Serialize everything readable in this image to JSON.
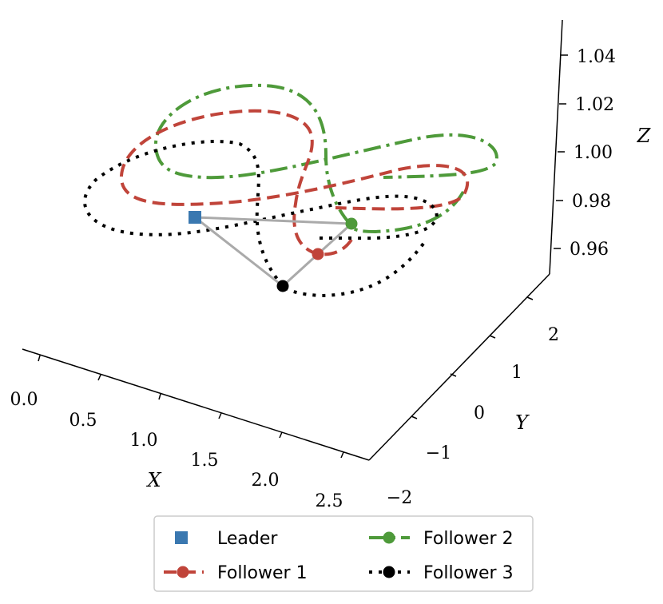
{
  "chart_data": {
    "type": "line3d",
    "axes": {
      "x": {
        "label": "X",
        "ticks": [
          "0.0",
          "0.5",
          "1.0",
          "1.5",
          "2.0",
          "2.5"
        ],
        "range": [
          0.0,
          2.5
        ]
      },
      "y": {
        "label": "Y",
        "ticks": [
          "−2",
          "−1",
          "0",
          "1",
          "2"
        ],
        "range": [
          -2,
          2
        ]
      },
      "z": {
        "label": "Z",
        "ticks": [
          "0.96",
          "0.98",
          "1.00",
          "1.02",
          "1.04"
        ],
        "range": [
          0.95,
          1.05
        ]
      }
    },
    "grid": false,
    "legend": {
      "placement": "bottom-center",
      "columns": 2,
      "entries": [
        {
          "key": "leader",
          "label": "Leader",
          "marker": "square",
          "line": "none",
          "color": "#3a78b0"
        },
        {
          "key": "f1",
          "label": "Follower 1",
          "marker": "circle",
          "line": "dashed",
          "color": "#c0443a"
        },
        {
          "key": "f2",
          "label": "Follower 2",
          "marker": "circle",
          "line": "dashdot",
          "color": "#4e9a3a"
        },
        {
          "key": "f3",
          "label": "Follower 3",
          "marker": "circle",
          "line": "dotted",
          "color": "#000000"
        }
      ]
    },
    "series": [
      {
        "name": "Follower 1",
        "trajectory": "figure-eight",
        "line": "dashed",
        "color": "#c0443a"
      },
      {
        "name": "Follower 2",
        "trajectory": "figure-eight",
        "line": "dashdot",
        "color": "#4e9a3a"
      },
      {
        "name": "Follower 3",
        "trajectory": "figure-eight",
        "line": "dotted",
        "color": "#000000"
      }
    ],
    "formation_links_color": "#aaaaaa"
  }
}
